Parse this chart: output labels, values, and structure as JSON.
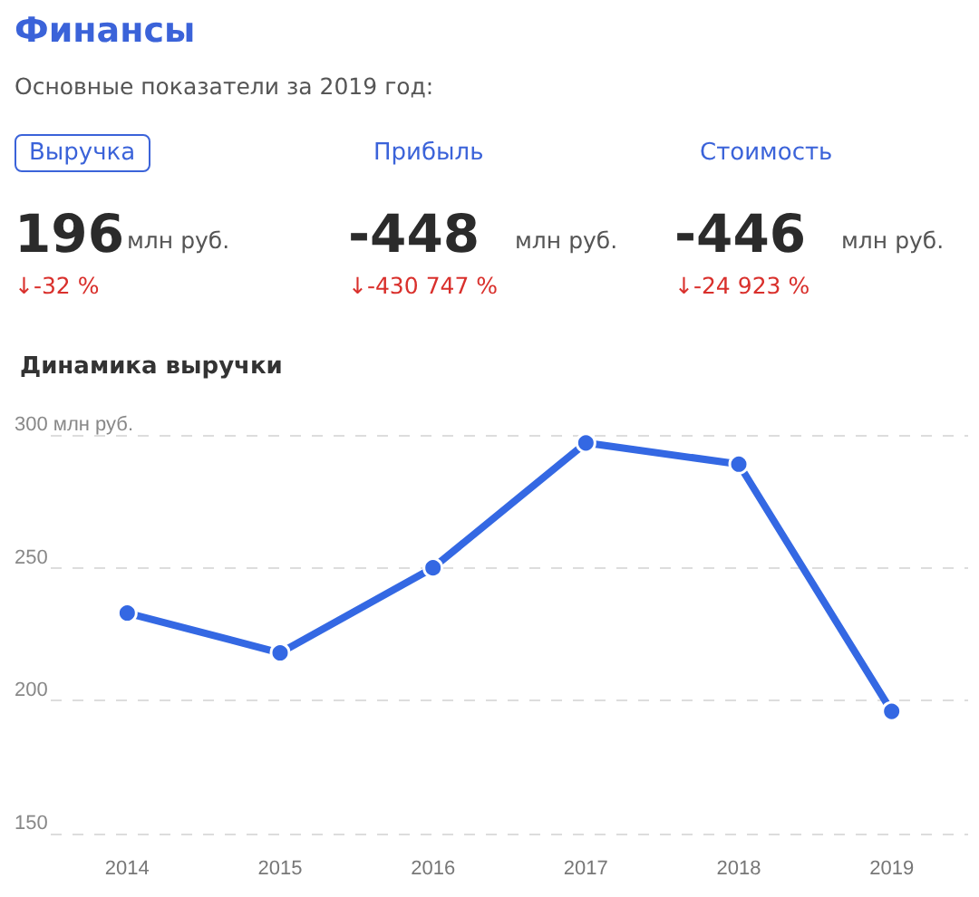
{
  "chart_data": [
    {
      "type": "other",
      "title": "Финансы",
      "subtitle": "Основные показатели за 2019 год:",
      "annotations": [
        "Выручка",
        "Прибыль",
        "Стоимость",
        "196",
        "-448",
        "-446",
        "млн руб.",
        "млн руб.",
        "млн руб.",
        "↓-32 %",
        "↓-430 747 %",
        "↓-24 923 %"
      ]
    },
    {
      "type": "line",
      "title": "Динамика выручки",
      "categories": [
        "2014",
        "2015",
        "2016",
        "2017",
        "2018",
        "2019"
      ],
      "values": [
        233,
        218,
        250,
        297,
        289,
        196
      ],
      "color": "#3468e3",
      "ylim": [
        150,
        300
      ],
      "yticks": [
        150,
        200,
        250,
        {
          "value": 300,
          "label": "300 млн руб."
        }
      ],
      "grid": "y",
      "marker": "circle",
      "line_style": "solid"
    }
  ]
}
